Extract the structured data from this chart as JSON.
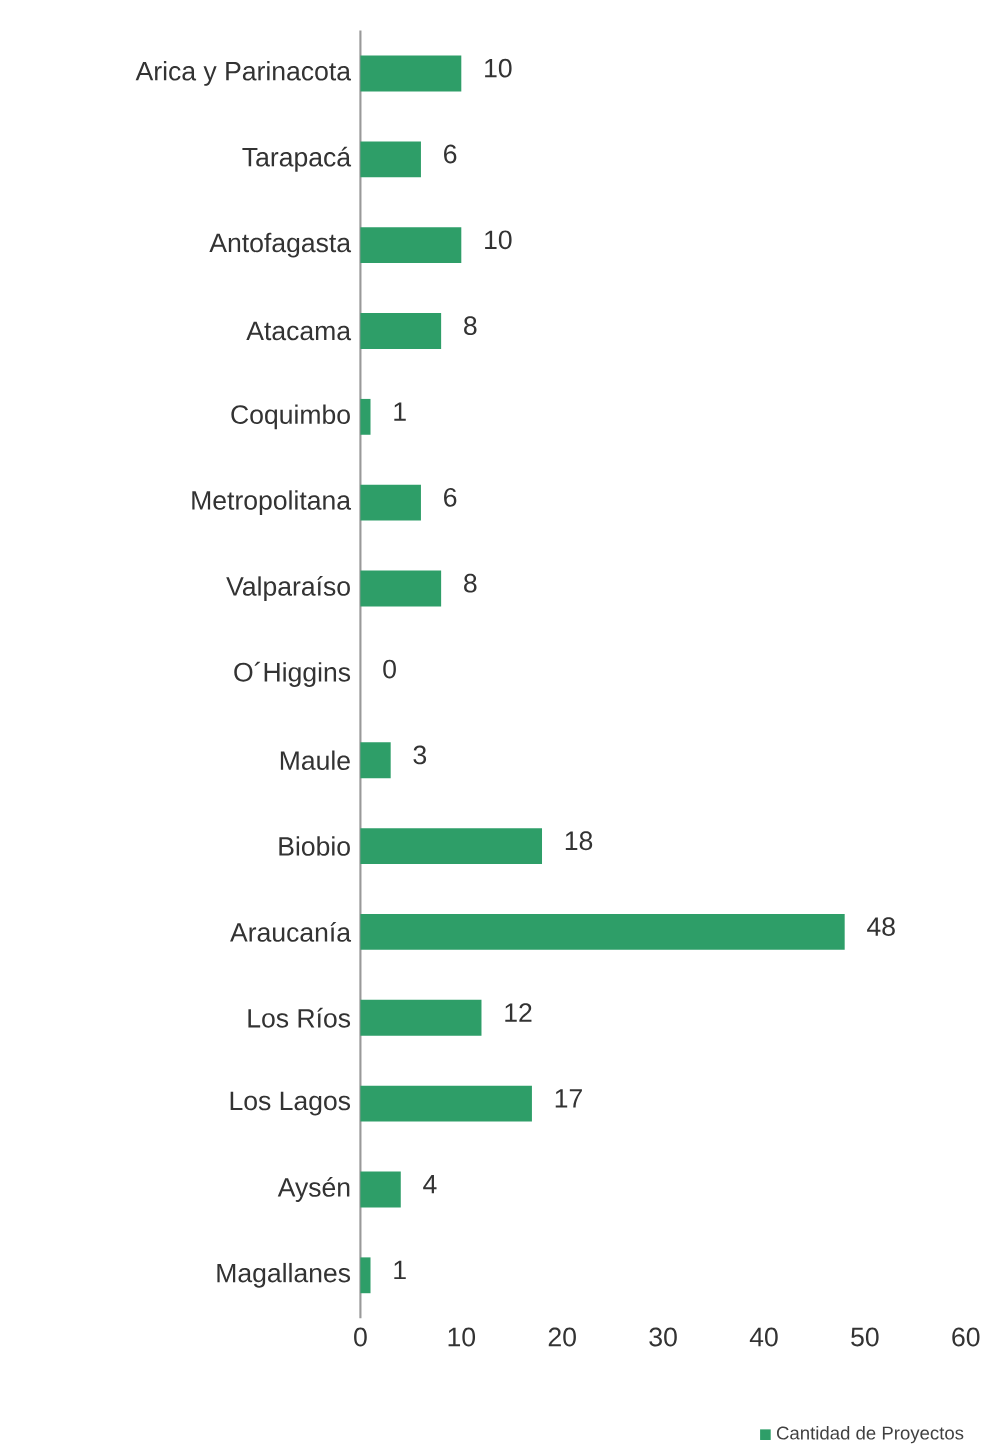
{
  "chart_data": {
    "type": "bar",
    "orientation": "horizontal",
    "categories": [
      "Arica y Parinacota",
      "Tarapacá",
      "Antofagasta",
      "Atacama",
      "Coquimbo",
      "Metropolitana",
      "Valparaíso",
      "O´Higgins",
      "Maule",
      "Biobio",
      "Araucanía",
      "Los Ríos",
      "Los Lagos",
      "Aysén",
      "Magallanes"
    ],
    "series": [
      {
        "name": "Cantidad de Proyectos",
        "color": "#2e9e68",
        "values": [
          10,
          6,
          10,
          8,
          1,
          6,
          8,
          0,
          3,
          18,
          48,
          12,
          17,
          4,
          1
        ]
      }
    ],
    "xlim": [
      0,
      60
    ],
    "xticks": [
      0,
      10,
      20,
      30,
      40,
      50,
      60
    ],
    "data_labels": true,
    "legend": "bottom right",
    "grid": false
  }
}
